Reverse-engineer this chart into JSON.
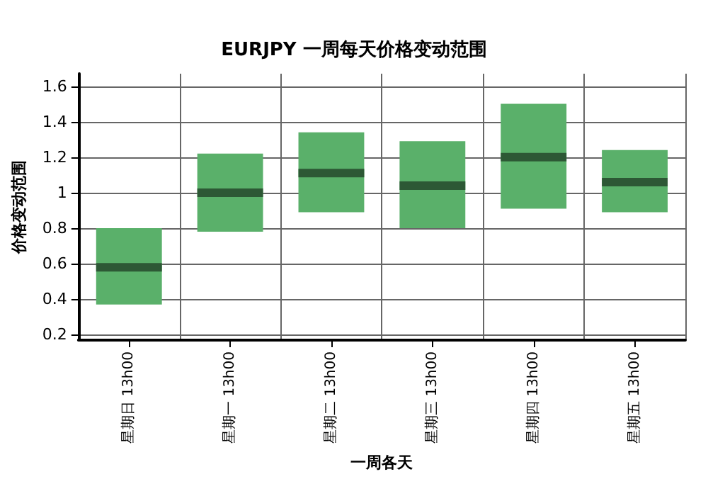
{
  "chart_data": {
    "type": "box",
    "title": "EURJPY 一周每天价格变动范围",
    "xlabel": "一周各天",
    "ylabel": "价格变动范围",
    "categories": [
      "星期日 13h00",
      "星期一 13h00",
      "星期二 13h00",
      "星期三 13h00",
      "星期四 13h00",
      "星期五 13h00"
    ],
    "series": [
      {
        "color": "#5ab06a",
        "boxes": [
          {
            "low": 0.37,
            "q1": 0.37,
            "median": 0.58,
            "q3": 0.8,
            "high": 0.8
          },
          {
            "low": 0.78,
            "q1": 0.78,
            "median": 1.0,
            "q3": 1.22,
            "high": 1.22
          },
          {
            "low": 0.89,
            "q1": 0.89,
            "median": 1.11,
            "q3": 1.34,
            "high": 1.34
          },
          {
            "low": 0.8,
            "q1": 0.8,
            "median": 1.04,
            "q3": 1.29,
            "high": 1.29
          },
          {
            "low": 0.91,
            "q1": 0.91,
            "median": 1.2,
            "q3": 1.5,
            "high": 1.5
          },
          {
            "low": 0.89,
            "q1": 0.89,
            "median": 1.06,
            "q3": 1.24,
            "high": 1.24
          }
        ]
      }
    ],
    "ylim": [
      0.17,
      1.67
    ],
    "yticks": [
      0.2,
      0.4,
      0.6,
      0.8,
      1,
      1.2,
      1.4,
      1.6
    ],
    "grid": true
  }
}
